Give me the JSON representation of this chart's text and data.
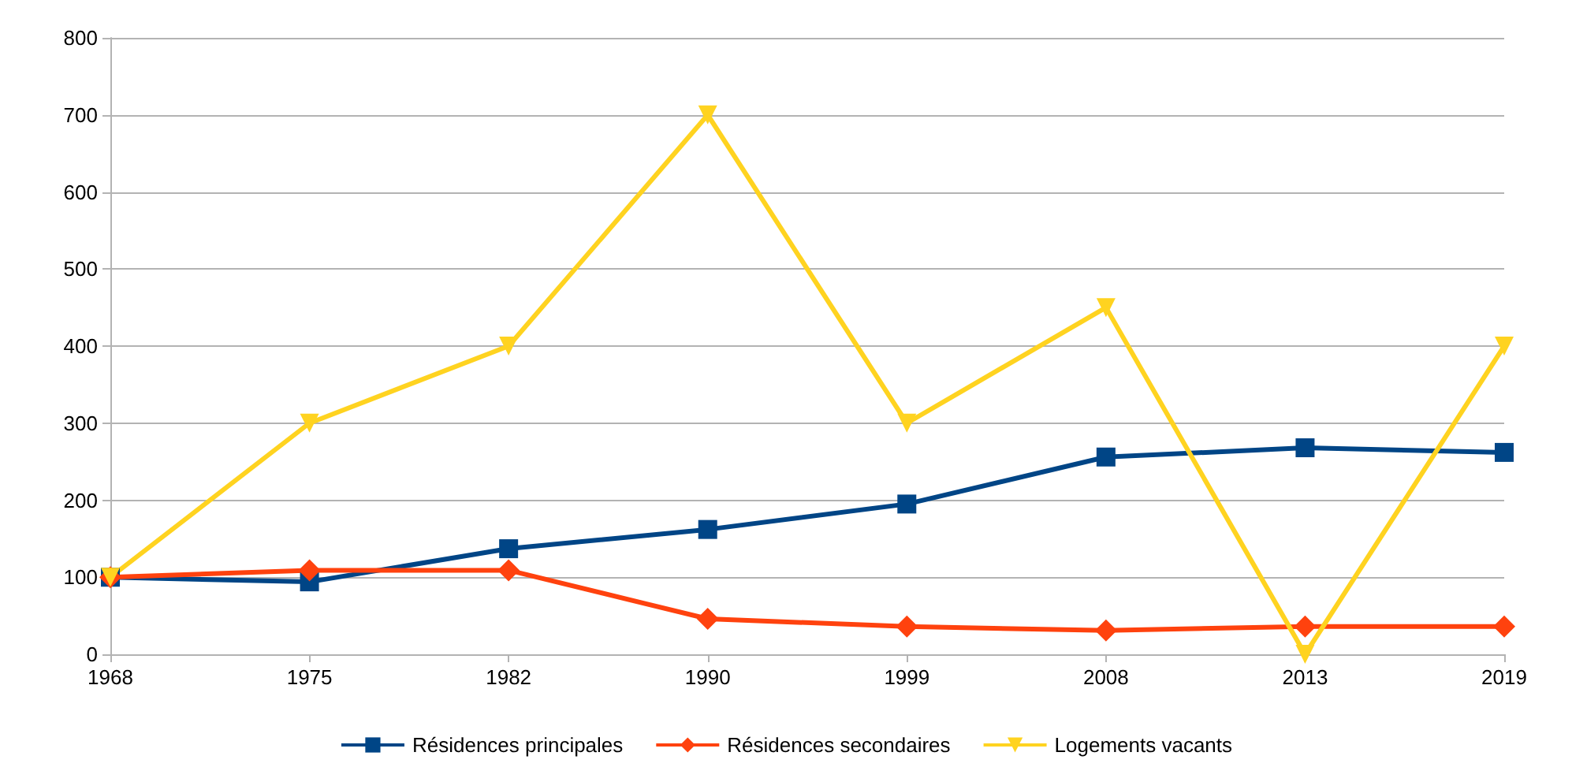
{
  "chart_data": {
    "type": "line",
    "categories": [
      "1968",
      "1975",
      "1982",
      "1990",
      "1999",
      "2008",
      "2013",
      "2019"
    ],
    "series": [
      {
        "name": "Résidences principales",
        "color": "#004586",
        "marker": "square",
        "values": [
          100,
          94,
          137,
          162,
          195,
          256,
          268,
          262
        ]
      },
      {
        "name": "Résidences secondaires",
        "color": "#ff420e",
        "marker": "diamond",
        "values": [
          100,
          109,
          109,
          46,
          36,
          31,
          36,
          36
        ]
      },
      {
        "name": "Logements vacants",
        "color": "#ffd320",
        "marker": "triangle",
        "values": [
          100,
          300,
          400,
          700,
          300,
          450,
          0,
          400
        ]
      }
    ],
    "ylim": [
      0,
      800
    ],
    "yticks": [
      0,
      100,
      200,
      300,
      400,
      500,
      600,
      700,
      800
    ],
    "grid": "y",
    "legend": "bottom"
  }
}
